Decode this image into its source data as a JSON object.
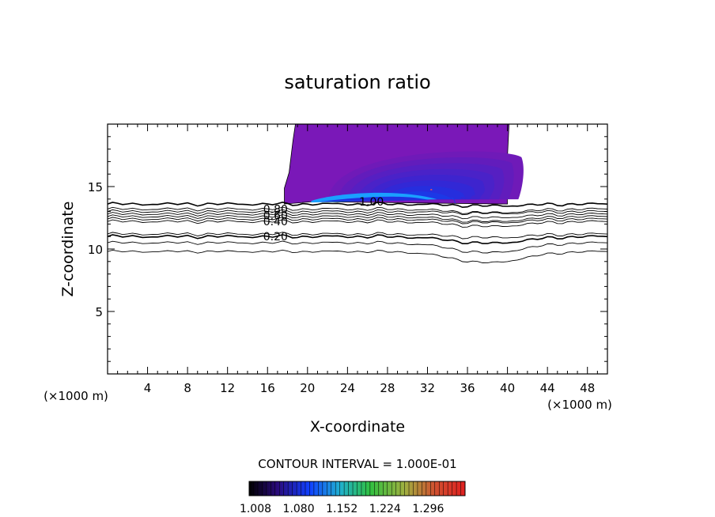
{
  "chart_data": {
    "type": "contour",
    "title": "saturation ratio",
    "xlabel": "X-coordinate",
    "ylabel": "Z-coordinate",
    "x_unit": "(×1000 m)",
    "z_unit": "(×1000 m)",
    "xlim": [
      0,
      50
    ],
    "ylim": [
      0,
      20
    ],
    "x_ticks": [
      "4",
      "8",
      "12",
      "16",
      "20",
      "24",
      "28",
      "32",
      "36",
      "40",
      "44",
      "48"
    ],
    "y_ticks": [
      "5",
      "10",
      "15"
    ],
    "contour_interval_label": "CONTOUR INTERVAL = 1.000E-01",
    "contour_lines": [
      {
        "label": "0.20",
        "baseline_z": 11.0
      },
      {
        "label": "0.40",
        "baseline_z": 12.2
      },
      {
        "label": "0.60",
        "baseline_z": 12.6
      },
      {
        "label": "0.80",
        "baseline_z": 13.0
      },
      {
        "label": "1.00",
        "baseline_z": 13.6
      }
    ],
    "lowest_contour_z": 9.8,
    "supersaturated_region": {
      "x_range": [
        18,
        40
      ],
      "z_range": [
        13.6,
        20
      ]
    },
    "colorbar": {
      "range": [
        1.008,
        1.368
      ],
      "tick_labels": [
        "1.008",
        "1.080",
        "1.152",
        "1.224",
        "1.296"
      ]
    },
    "colors": {
      "fill_outer": "#7a18b8",
      "fill_core": "#2030e0",
      "fill_peak": "#1aa0ff"
    }
  }
}
